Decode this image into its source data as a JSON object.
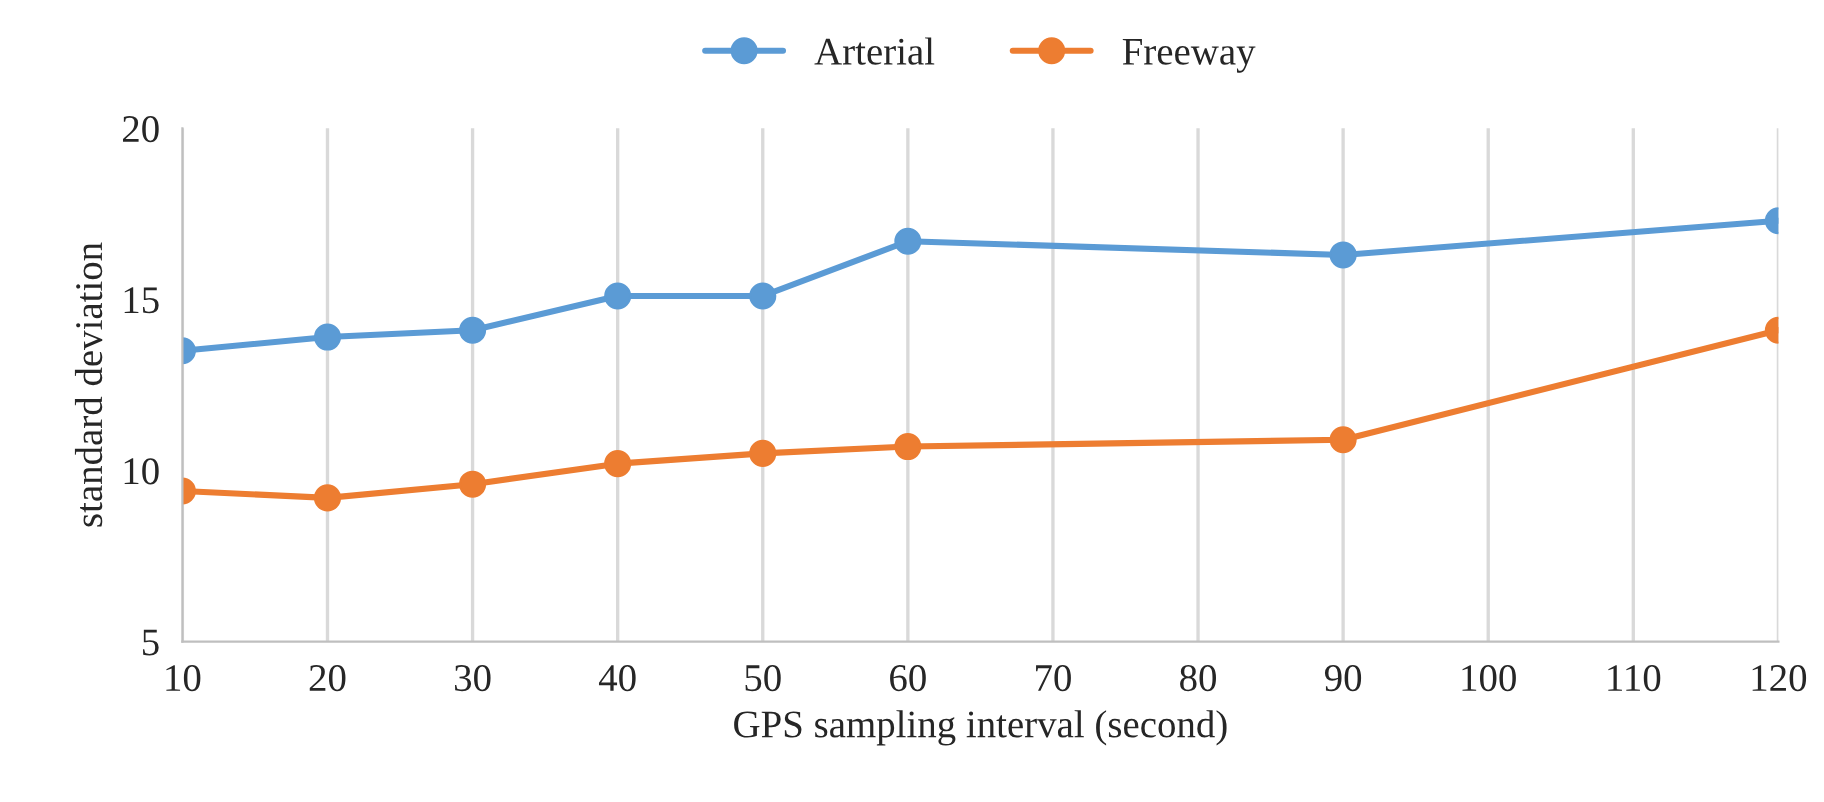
{
  "chart_data": {
    "type": "line",
    "xlabel": "GPS sampling interval (second)",
    "ylabel": "standard deviation",
    "x": [
      10,
      20,
      30,
      40,
      50,
      60,
      90,
      120
    ],
    "series": [
      {
        "name": "Arterial",
        "color": "#5b9bd5",
        "values": [
          13.5,
          13.9,
          14.1,
          15.1,
          15.1,
          16.7,
          16.3,
          17.3
        ]
      },
      {
        "name": "Freeway",
        "color": "#ed7d31",
        "values": [
          9.4,
          9.2,
          9.6,
          10.2,
          10.5,
          10.7,
          10.9,
          14.1
        ]
      }
    ],
    "xlim": [
      10,
      120
    ],
    "xticks": [
      10,
      20,
      30,
      40,
      50,
      60,
      70,
      80,
      90,
      100,
      110,
      120
    ],
    "ylim": [
      5,
      20
    ],
    "yticks": [
      5,
      10,
      15,
      20
    ],
    "grid": "x",
    "legend": "top",
    "marker": "circle",
    "line_style": "solid"
  }
}
